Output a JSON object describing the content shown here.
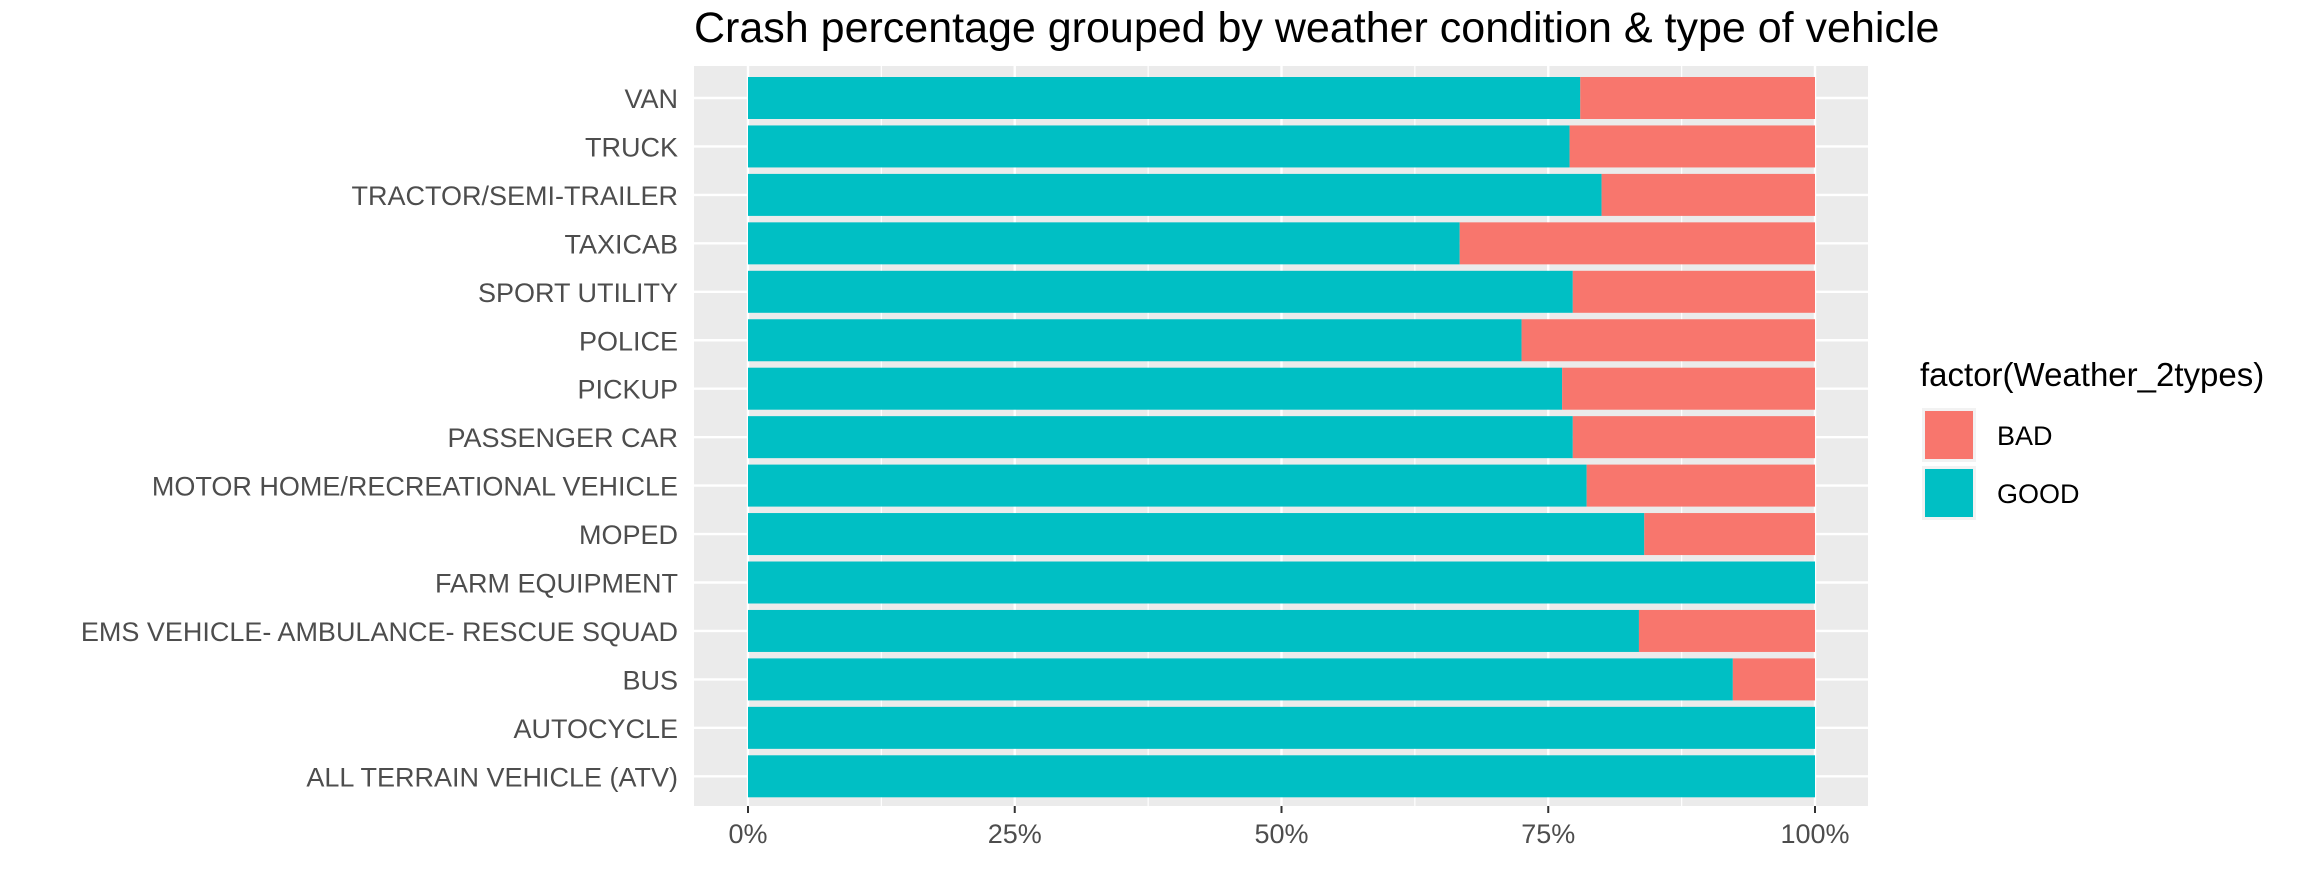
{
  "chart_data": {
    "type": "bar",
    "orientation": "horizontal",
    "stacked": true,
    "title": "Crash percentage grouped by weather condition & type of vehicle",
    "xlabel": "",
    "ylabel": "",
    "xlim": [
      0,
      1
    ],
    "x_ticks": [
      "0%",
      "25%",
      "50%",
      "75%",
      "100%"
    ],
    "x_tick_values": [
      0,
      0.25,
      0.5,
      0.75,
      1.0
    ],
    "grid": true,
    "categories": [
      "VAN",
      "TRUCK",
      "TRACTOR/SEMI-TRAILER",
      "TAXICAB",
      "SPORT UTILITY",
      "POLICE",
      "PICKUP",
      "PASSENGER CAR",
      "MOTOR HOME/RECREATIONAL VEHICLE",
      "MOPED",
      "FARM EQUIPMENT",
      "EMS VEHICLE- AMBULANCE- RESCUE SQUAD",
      "BUS",
      "AUTOCYCLE",
      "ALL TERRAIN VEHICLE (ATV)"
    ],
    "series": [
      {
        "name": "GOOD",
        "color": "#00BFC4",
        "values": [
          0.78,
          0.77,
          0.8,
          0.667,
          0.773,
          0.725,
          0.763,
          0.773,
          0.786,
          0.84,
          1.0,
          0.835,
          0.923,
          1.0,
          1.0
        ]
      },
      {
        "name": "BAD",
        "color": "#F8766D",
        "values": [
          0.22,
          0.23,
          0.2,
          0.333,
          0.227,
          0.275,
          0.237,
          0.227,
          0.214,
          0.16,
          0.0,
          0.165,
          0.077,
          0.0,
          0.0
        ]
      }
    ],
    "legend": {
      "title": "factor(Weather_2types)",
      "position": "right",
      "items": [
        {
          "label": "BAD",
          "color": "#F8766D"
        },
        {
          "label": "GOOD",
          "color": "#00BFC4"
        }
      ]
    },
    "panel_background": "#EBEBEB",
    "grid_color": "#FFFFFF"
  }
}
